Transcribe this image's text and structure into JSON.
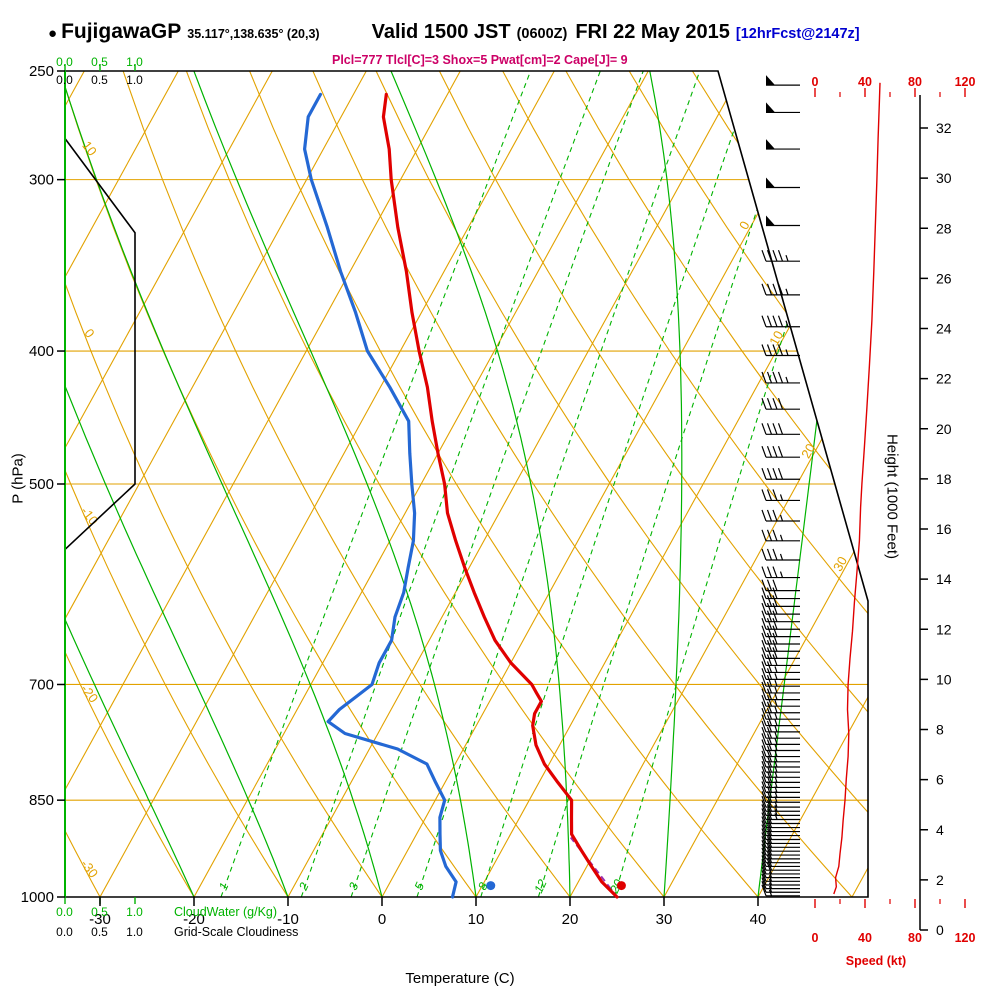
{
  "header": {
    "bullet": "●",
    "station": "FujigawaGP",
    "coords": "35.117°,138.635° (20,3)",
    "valid_time": "Valid 1500 JST",
    "valid_zulu": "(0600Z)",
    "valid_date": "FRI 22 May 2015",
    "forecast_tag": "[12hrFcst@2147z]",
    "indices": "Plcl=777 Tlcl[C]=3 Shox=5 Pwat[cm]=2 Cape[J]= 9"
  },
  "axes": {
    "pressure": {
      "label": "P (hPa)",
      "ticks": [
        250,
        300,
        400,
        500,
        700,
        850,
        1000
      ]
    },
    "temperature": {
      "label": "Temperature (C)",
      "ticks": [
        -30,
        -20,
        -10,
        0,
        10,
        20,
        30,
        40
      ]
    },
    "height": {
      "label": "Height (1000 Feet)",
      "ticks": [
        0,
        2,
        4,
        6,
        8,
        10,
        12,
        14,
        16,
        18,
        20,
        22,
        24,
        26,
        28,
        30,
        32
      ]
    },
    "speed": {
      "label": "Speed (kt)",
      "ticks": [
        "0",
        "40",
        "80",
        "120"
      ]
    },
    "cloudwater": {
      "label": "CloudWater (g/Kg)",
      "ticks": [
        "0.0",
        "0.5",
        "1.0"
      ]
    },
    "cloudiness": {
      "label": "Grid-Scale Cloudiness",
      "ticks": [
        "0.0",
        "0.5",
        "1.0"
      ]
    }
  },
  "colors": {
    "grid_orange": "#e2a200",
    "green": "#00b300",
    "temp_red": "#e00000",
    "dew_blue": "#2468d4",
    "indices_magenta": "#cc0066",
    "parcel_purple": "#9b30b0",
    "fcst_blue": "#0000d0",
    "speed_red": "#e00000",
    "black": "#000000"
  },
  "chart_data": {
    "type": "line",
    "subtype": "skewt-log-p-sounding",
    "pressure_range_hpa": [
      1000,
      250
    ],
    "temperature_axis_c": [
      -33,
      45
    ],
    "temperature_profile": {
      "pressure_hpa": [
        1000,
        975,
        950,
        925,
        900,
        875,
        850,
        825,
        800,
        775,
        750,
        735,
        720,
        710,
        700,
        675,
        650,
        625,
        600,
        575,
        550,
        525,
        500,
        475,
        450,
        425,
        400,
        375,
        350,
        325,
        300,
        285,
        270,
        260
      ],
      "temp_c": [
        25,
        22.5,
        20.5,
        18.5,
        16.5,
        15.5,
        14.5,
        12,
        9.5,
        7.5,
        6,
        5.5,
        5.5,
        4.5,
        3.5,
        0,
        -3,
        -5.5,
        -8,
        -10.5,
        -13,
        -15.5,
        -17.5,
        -20,
        -22.5,
        -25,
        -28,
        -31,
        -34,
        -37.5,
        -41,
        -43,
        -45.5,
        -46.5
      ]
    },
    "dewpoint_profile": {
      "pressure_hpa": [
        1000,
        975,
        950,
        925,
        900,
        875,
        850,
        825,
        800,
        780,
        760,
        745,
        730,
        715,
        700,
        675,
        650,
        625,
        600,
        575,
        550,
        525,
        500,
        475,
        450,
        425,
        400,
        375,
        350,
        325,
        300,
        285,
        270,
        260
      ],
      "temp_c": [
        7.5,
        7,
        5,
        3.5,
        2.5,
        1.5,
        1,
        -1,
        -3,
        -7,
        -13.5,
        -16,
        -15.5,
        -14.5,
        -13.5,
        -14,
        -14,
        -15,
        -15.5,
        -16.5,
        -17.5,
        -19,
        -21,
        -23,
        -25,
        -29,
        -33.5,
        -37,
        -41,
        -45,
        -49.5,
        -52,
        -53.5,
        -53.5
      ]
    },
    "surface_markers": {
      "temperature": {
        "pressure_hpa": 981,
        "temp_c": 24.8
      },
      "dewpoint": {
        "pressure_hpa": 981,
        "temp_c": 10.9
      }
    },
    "parcel_path": {
      "pressure_hpa": [
        1000,
        950,
        905
      ],
      "temp_c": [
        25,
        20.7,
        16.6
      ]
    },
    "isotherms_c": [
      -80,
      -70,
      -60,
      -50,
      -40,
      -30,
      -20,
      -10,
      0,
      10,
      20,
      30,
      40,
      50
    ],
    "isotherm_labels_c": [
      0,
      10,
      20,
      30
    ],
    "dry_adiabats_c": [
      -30,
      -20,
      -10,
      0,
      10,
      20,
      30,
      40,
      50,
      60,
      70,
      80,
      90,
      100,
      110,
      120
    ],
    "dry_adiabat_labels_c": [
      10,
      0,
      -10,
      -20,
      -30
    ],
    "moist_adiabats_c": [
      -20,
      -10,
      0,
      10,
      20,
      30,
      40
    ],
    "mixing_ratio_g_kg": [
      1,
      2,
      3,
      5,
      8,
      12,
      20
    ],
    "isobars_hpa": [
      300,
      400,
      500,
      700,
      850
    ],
    "cloudiness_profile": {
      "value": [
        0,
        1,
        1,
        0
      ],
      "pressure_hpa": [
        280,
        328,
        500,
        558
      ]
    },
    "wind_barbs": {
      "pressure_hpa": [
        998,
        992,
        986,
        980,
        974,
        968,
        962,
        956,
        950,
        944,
        938,
        932,
        926,
        920,
        914,
        908,
        902,
        896,
        890,
        884,
        878,
        872,
        866,
        860,
        853,
        846,
        839,
        832,
        825,
        818,
        811,
        804,
        797,
        790,
        782,
        774,
        766,
        758,
        750,
        742,
        734,
        726,
        718,
        710,
        702,
        694,
        686,
        678,
        670,
        662,
        654,
        646,
        638,
        630,
        622,
        614,
        606,
        598,
        585,
        568,
        550,
        532,
        514,
        496,
        478,
        460,
        441,
        422,
        403,
        384,
        364,
        344,
        324,
        304,
        285,
        268,
        256
      ],
      "speed_kt": [
        15,
        16,
        16,
        17,
        17,
        17,
        18,
        18,
        19,
        19,
        19,
        20,
        20,
        20,
        21,
        21,
        21,
        22,
        22,
        22,
        23,
        23,
        23,
        24,
        24,
        24,
        25,
        25,
        25,
        25,
        26,
        26,
        26,
        26,
        26,
        27,
        27,
        27,
        27,
        26,
        26,
        26,
        26,
        26,
        27,
        27,
        27,
        28,
        28,
        28,
        29,
        29,
        30,
        30,
        31,
        31,
        31,
        32,
        33,
        34,
        35,
        36,
        37,
        38,
        39,
        40,
        41,
        43,
        44,
        45,
        46,
        47,
        48,
        49,
        50,
        51,
        52
      ]
    },
    "speed_profile": {
      "pressure_hpa": [
        995,
        983,
        968,
        950,
        930,
        905,
        880,
        850,
        820,
        790,
        760,
        730,
        700,
        670,
        640,
        610,
        580,
        550,
        520,
        500,
        470,
        440,
        410,
        380,
        350,
        320,
        300,
        280,
        263,
        255
      ],
      "speed_kt": [
        15,
        17,
        16.5,
        19,
        20,
        21.5,
        22.5,
        24,
        25,
        26.5,
        27,
        26,
        26.5,
        28,
        30,
        31.5,
        33.5,
        35.5,
        36.5,
        37.5,
        39.5,
        41.5,
        43.5,
        45.5,
        47,
        48.5,
        49.5,
        50.5,
        51.5,
        52
      ]
    }
  }
}
